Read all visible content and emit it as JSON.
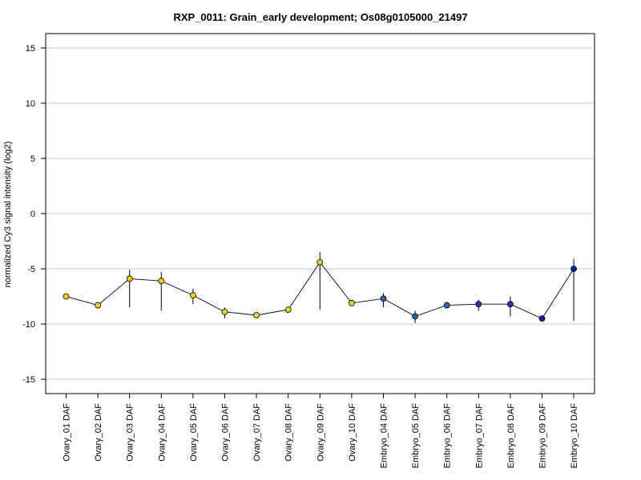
{
  "chart_data": {
    "type": "line",
    "title": "RXP_0011: Grain_early development; Os08g0105000_21497",
    "xlabel": "",
    "ylabel": "normalized Cy3 signal intensity (log2)",
    "ylim": [
      -16.3,
      16.3
    ],
    "yticks": [
      -15,
      -10,
      -5,
      0,
      5,
      10,
      15
    ],
    "grid": true,
    "categories": [
      "Ovary_01 DAF",
      "Ovary_02 DAF",
      "Ovary_03 DAF",
      "Ovary_04 DAF",
      "Ovary_05 DAF",
      "Ovary_06 DAF",
      "Ovary_07 DAF",
      "Ovary_08 DAF",
      "Ovary_09 DAF",
      "Ovary_10 DAF",
      "Embryo_04 DAF",
      "Embryo_05 DAF",
      "Embryo_06 DAF",
      "Embryo_07 DAF",
      "Embryo_08 DAF",
      "Embryo_09 DAF",
      "Embryo_10 DAF"
    ],
    "series": [
      {
        "values": [
          -7.5,
          -8.3,
          -5.9,
          -6.1,
          -7.4,
          -8.9,
          -9.2,
          -8.7,
          -4.4,
          -8.1,
          -7.7,
          -9.3,
          -8.3,
          -8.2,
          -8.2,
          -9.5,
          -5.0
        ],
        "error_low": [
          -7.5,
          -8.3,
          -8.5,
          -8.8,
          -8.2,
          -9.5,
          -9.3,
          -8.8,
          -8.7,
          -8.1,
          -8.5,
          -9.9,
          -8.5,
          -8.8,
          -9.3,
          -9.5,
          -9.7
        ],
        "error_high": [
          -7.5,
          -8.3,
          -5.1,
          -5.3,
          -6.8,
          -8.5,
          -9.0,
          -8.6,
          -3.5,
          -8.0,
          -7.2,
          -8.8,
          -8.1,
          -7.8,
          -7.5,
          -9.4,
          -4.1
        ],
        "marker_colors": [
          "#f2d019",
          "#f2d019",
          "#f2d019",
          "#f2d019",
          "#f2d019",
          "#f2d019",
          "#f2d019",
          "#f2d019",
          "#f2d019",
          "#f2d019",
          "#2a5db8",
          "#2a5db8",
          "#2a5db8",
          "#1a3aa8",
          "#1a3aa8",
          "#0f1f9c",
          "#0f1f9c"
        ]
      }
    ],
    "colors": {
      "line": "#000000",
      "grid": "#c8c8c8",
      "errorbar": "#000000"
    }
  }
}
